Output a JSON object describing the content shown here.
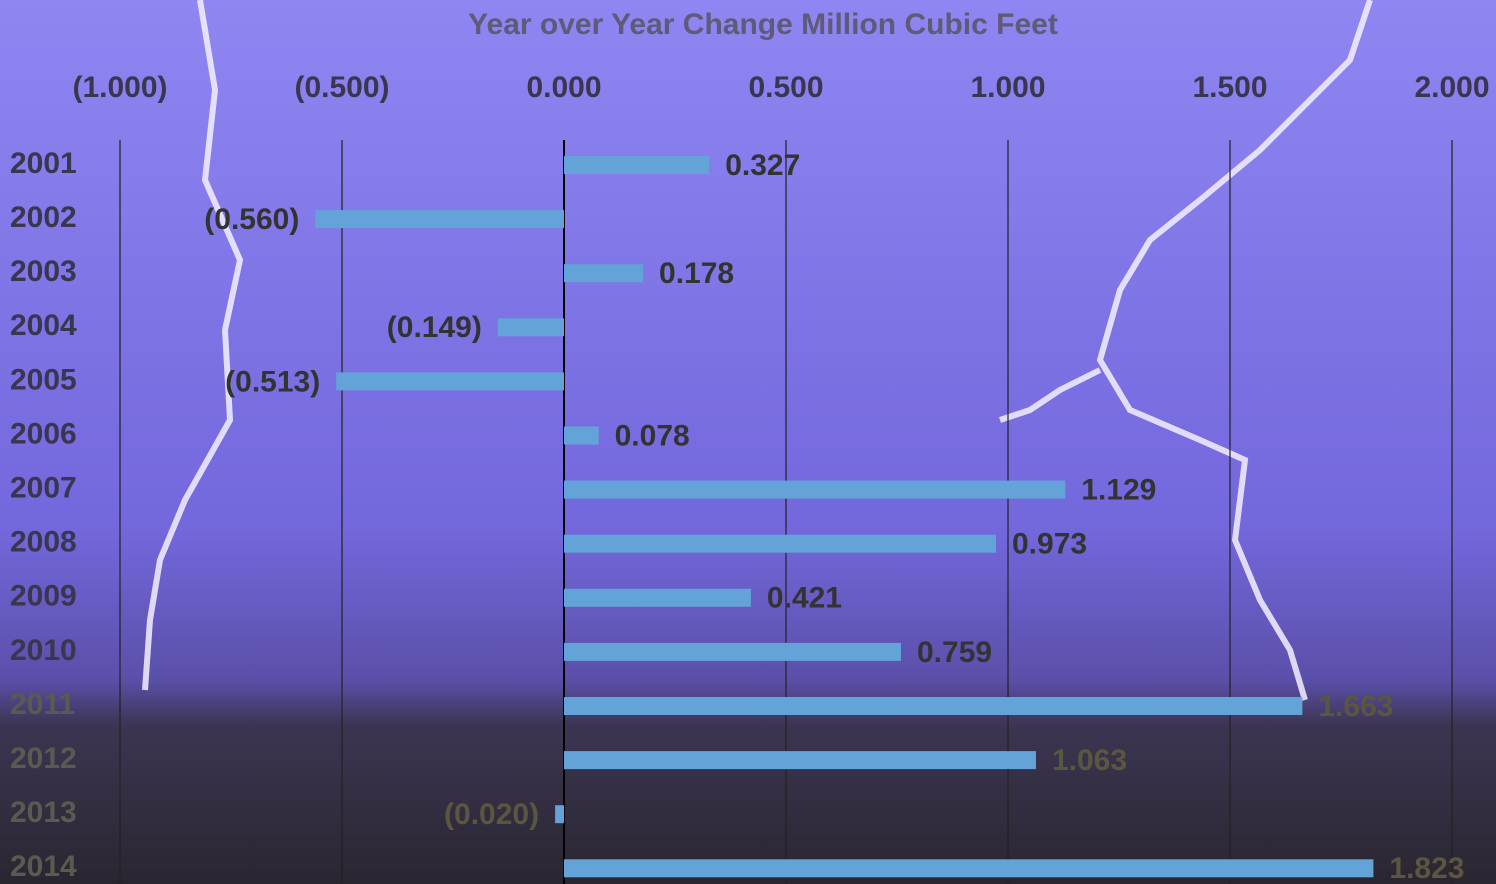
{
  "chart_data": {
    "type": "bar",
    "orientation": "horizontal",
    "title": "Year over Year Change Million Cubic Feet",
    "categories": [
      "2001",
      "2002",
      "2003",
      "2004",
      "2005",
      "2006",
      "2007",
      "2008",
      "2009",
      "2010",
      "2011",
      "2012",
      "2013",
      "2014"
    ],
    "values": [
      0.327,
      -0.56,
      0.178,
      -0.149,
      -0.513,
      0.078,
      1.129,
      0.973,
      0.421,
      0.759,
      1.663,
      1.063,
      -0.02,
      1.823
    ],
    "value_labels": [
      "0.327",
      "(0.560)",
      "0.178",
      "(0.149)",
      "(0.513)",
      "0.078",
      "1.129",
      "0.973",
      "0.421",
      "0.759",
      "1.663",
      "1.063",
      "(0.020)",
      "1.823"
    ],
    "color": "#63a3d8",
    "xlim": [
      -1,
      2
    ],
    "xticks": [
      {
        "value": -1,
        "label": "(1.000)"
      },
      {
        "value": -0.5,
        "label": "(0.500)"
      },
      {
        "value": 0,
        "label": "0.000"
      },
      {
        "value": 0.5,
        "label": "0.500"
      },
      {
        "value": 1,
        "label": "1.000"
      },
      {
        "value": 1.5,
        "label": "1.500"
      },
      {
        "value": 2,
        "label": "2.000"
      }
    ],
    "grid": true
  }
}
